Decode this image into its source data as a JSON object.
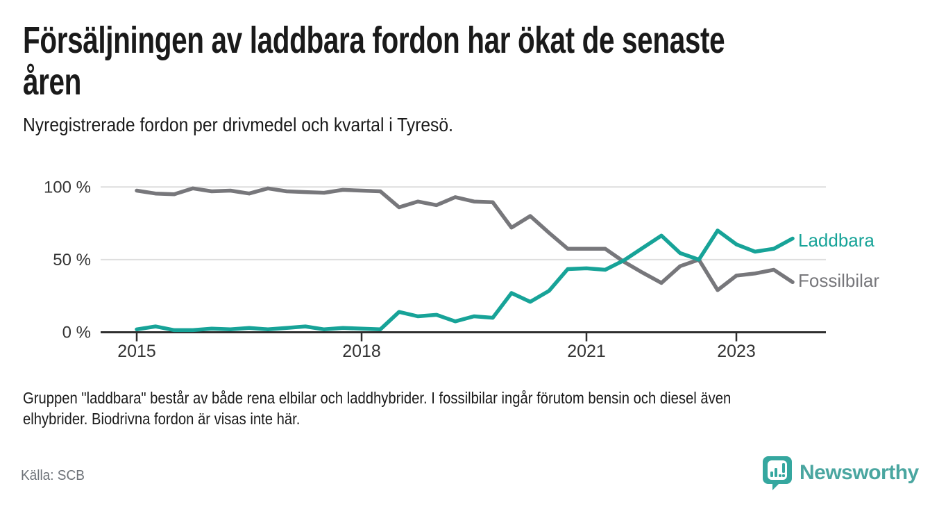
{
  "header": {
    "title_lines": [
      "Försäljningen av laddbara fordon har ökat de senaste",
      "åren"
    ],
    "subtitle": "Nyregistrerade fordon per drivmedel och kvartal i Tyresö."
  },
  "chart_data": {
    "type": "line",
    "unit": "%",
    "ylim": [
      0,
      100
    ],
    "grid": "horizontal",
    "legend_position": "right-of-line-end",
    "y_ticks": [
      {
        "value": 0,
        "label": "0 %"
      },
      {
        "value": 50,
        "label": "50 %"
      },
      {
        "value": 100,
        "label": "100 %"
      }
    ],
    "x_ticks": [
      {
        "index": 0,
        "label": "2015"
      },
      {
        "index": 12,
        "label": "2018"
      },
      {
        "index": 24,
        "label": "2021"
      },
      {
        "index": 32,
        "label": "2023"
      }
    ],
    "quarters": [
      "2015 Q1",
      "2015 Q2",
      "2015 Q3",
      "2015 Q4",
      "2016 Q1",
      "2016 Q2",
      "2016 Q3",
      "2016 Q4",
      "2017 Q1",
      "2017 Q2",
      "2017 Q3",
      "2017 Q4",
      "2018 Q1",
      "2018 Q2",
      "2018 Q3",
      "2018 Q4",
      "2019 Q1",
      "2019 Q2",
      "2019 Q3",
      "2019 Q4",
      "2020 Q1",
      "2020 Q2",
      "2020 Q3",
      "2020 Q4",
      "2021 Q1",
      "2021 Q2",
      "2021 Q3",
      "2021 Q4",
      "2022 Q1",
      "2022 Q2",
      "2022 Q3",
      "2022 Q4",
      "2023 Q1",
      "2023 Q2",
      "2023 Q3",
      "2023 Q4"
    ],
    "series": [
      {
        "name": "Laddbara",
        "color": "#17a398",
        "values": [
          2,
          4,
          1.5,
          1.5,
          2.5,
          2,
          3,
          2,
          3,
          4,
          2,
          3,
          2.5,
          2,
          14,
          11,
          12,
          7.5,
          11,
          10,
          27,
          21,
          28.5,
          43.5,
          44,
          43,
          49.5,
          58,
          66.5,
          54.5,
          50,
          70,
          60.5,
          55.5,
          57.5,
          64.5
        ]
      },
      {
        "name": "Fossilbilar",
        "color": "#77777b",
        "values": [
          97.5,
          95.5,
          95,
          99,
          97,
          97.5,
          95.5,
          99,
          97,
          96.5,
          96,
          98,
          97.5,
          97,
          86,
          90,
          87.5,
          93,
          90,
          89.5,
          72,
          80,
          68.5,
          57.5,
          57.5,
          57.5,
          48.5,
          41,
          34,
          45.5,
          50,
          29,
          39,
          40.5,
          43,
          34.5
        ]
      }
    ]
  },
  "footnote": {
    "lines": [
      "Gruppen \"laddbara\" består av både rena elbilar och laddhybrider. I fossilbilar ingår förutom bensin och diesel även",
      "elhybrider. Biodrivna fordon är visas inte här."
    ]
  },
  "source": {
    "label": "Källa: SCB"
  },
  "branding": {
    "wordmark": "Newsworthy",
    "logo_icon": "newsworthy-map-marker-chart-icon",
    "badge_color": "#35a79f",
    "wordmark_color": "#4aa6a0"
  },
  "colors": {
    "background": "#ffffff",
    "grid": "#dedede",
    "axis": "#2e2e2e",
    "tick_label": "#333333",
    "title": "#1a1a1a",
    "source": "#6d7278"
  }
}
